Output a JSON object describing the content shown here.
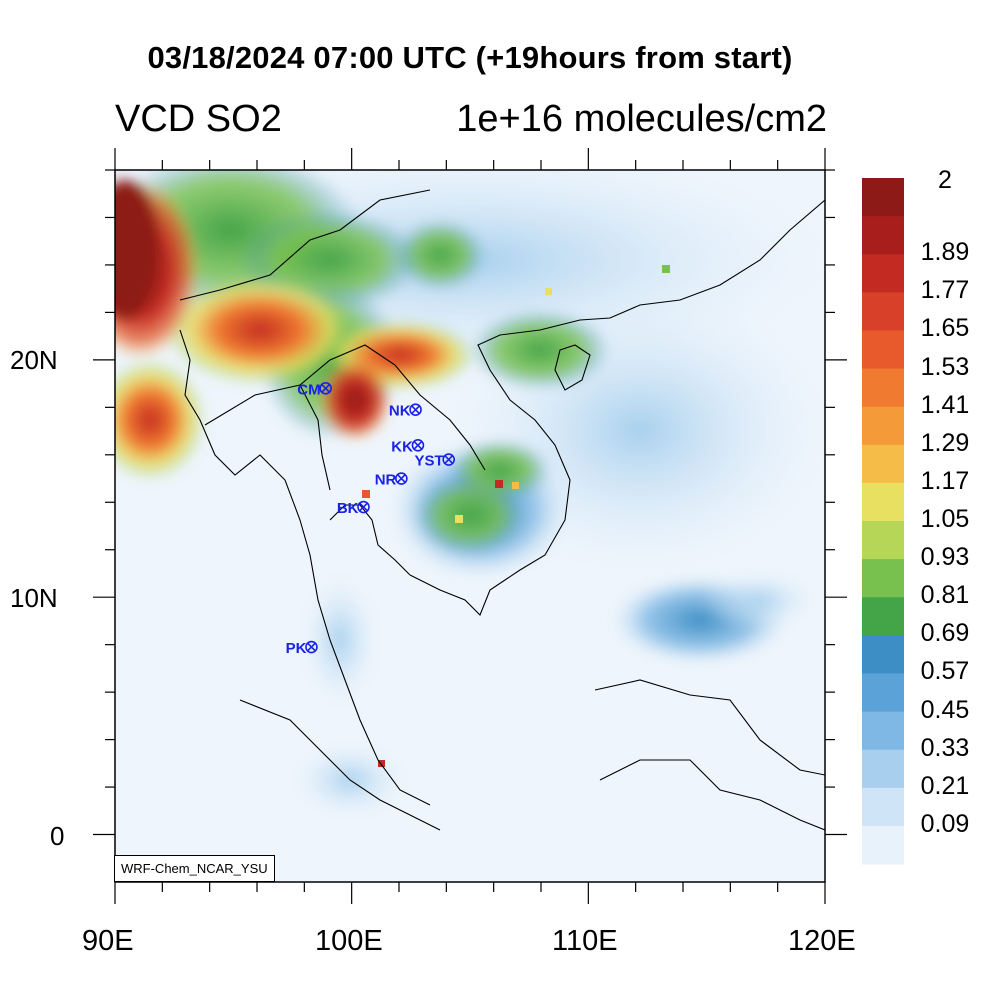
{
  "title": "03/18/2024 07:00 UTC (+19hours from start)",
  "variable_label": "VCD SO2",
  "unit_label": "1e+16 molecules/cm2",
  "credit": "WRF-Chem_NCAR_YSU",
  "map": {
    "lon_range": [
      90,
      120
    ],
    "lat_range": [
      -2,
      28
    ],
    "lon_ticks": [
      "90E",
      "100E",
      "110E",
      "120E"
    ],
    "lat_ticks": [
      "20N",
      "10N",
      "0"
    ],
    "sites": [
      {
        "name": "CM",
        "lon": 98.9,
        "lat": 18.8
      },
      {
        "name": "NK",
        "lon": 102.7,
        "lat": 17.9
      },
      {
        "name": "KK",
        "lon": 102.8,
        "lat": 16.4
      },
      {
        "name": "YST",
        "lon": 104.1,
        "lat": 15.8
      },
      {
        "name": "NR",
        "lon": 102.1,
        "lat": 15.0
      },
      {
        "name": "BK",
        "lon": 100.5,
        "lat": 13.8
      },
      {
        "name": "PK",
        "lon": 98.3,
        "lat": 7.9
      }
    ]
  },
  "colorbar": {
    "labels": [
      "2",
      "1.89",
      "1.77",
      "1.65",
      "1.53",
      "1.41",
      "1.29",
      "1.17",
      "1.05",
      "0.93",
      "0.81",
      "0.69",
      "0.57",
      "0.45",
      "0.33",
      "0.21",
      "0.09"
    ],
    "colors": [
      "#8e1a18",
      "#a81e1c",
      "#c22a22",
      "#d8402a",
      "#e85a2c",
      "#f07a30",
      "#f49a38",
      "#f5bd48",
      "#e8e060",
      "#b6d658",
      "#78c14e",
      "#44a448",
      "#3d8ec4",
      "#5aa2d8",
      "#7fb8e4",
      "#a8d0ee",
      "#cfe4f6",
      "#e8f2fb"
    ]
  }
}
